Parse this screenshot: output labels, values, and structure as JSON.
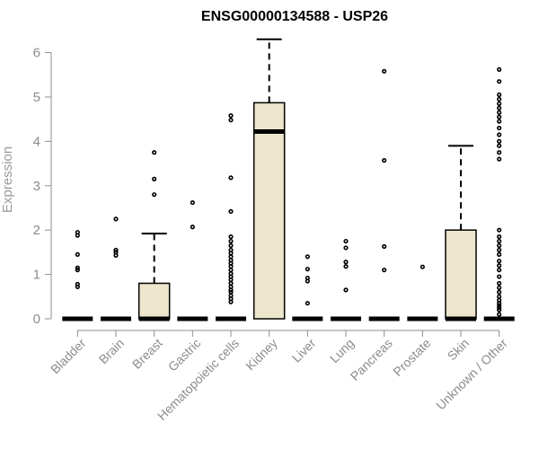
{
  "chart_data": {
    "type": "box",
    "title": "ENSG00000134588 - USP26",
    "xlabel": "",
    "ylabel": "Expression",
    "ylim": [
      0,
      6.3
    ],
    "y_ticks": [
      0,
      1,
      2,
      3,
      4,
      5,
      6
    ],
    "grid": false,
    "colors": {
      "box_fill": "#ede6cc",
      "line": "#000000",
      "axis": "#8c8c8c",
      "label": "#8c8c8c"
    },
    "categories": [
      "Bladder",
      "Brain",
      "Breast",
      "Gastric",
      "Hematopoietic cells",
      "Kidney",
      "Liver",
      "Lung",
      "Pancreas",
      "Prostate",
      "Skin",
      "Unknown / Other"
    ],
    "boxes": [
      {
        "category": "Bladder",
        "q1": 0,
        "median": 0,
        "q3": 0,
        "whisker_low": 0,
        "whisker_high": 0,
        "outliers": [
          0.72,
          0.78,
          1.1,
          1.15,
          1.45,
          1.88,
          1.95
        ]
      },
      {
        "category": "Brain",
        "q1": 0,
        "median": 0,
        "q3": 0,
        "whisker_low": 0,
        "whisker_high": 0,
        "outliers": [
          1.43,
          1.5,
          1.55,
          2.25
        ]
      },
      {
        "category": "Breast",
        "q1": 0,
        "median": 0,
        "q3": 0.8,
        "whisker_low": 0,
        "whisker_high": 1.92,
        "outliers": [
          2.8,
          3.15,
          3.75
        ]
      },
      {
        "category": "Gastric",
        "q1": 0,
        "median": 0,
        "q3": 0,
        "whisker_low": 0,
        "whisker_high": 0,
        "outliers": [
          2.07,
          2.62
        ]
      },
      {
        "category": "Hematopoietic cells",
        "q1": 0,
        "median": 0,
        "q3": 0,
        "whisker_low": 0,
        "whisker_high": 0,
        "outliers": [
          0.38,
          0.45,
          0.52,
          0.6,
          0.65,
          0.72,
          0.8,
          0.88,
          0.95,
          1.02,
          1.1,
          1.18,
          1.25,
          1.32,
          1.4,
          1.48,
          1.55,
          1.65,
          1.75,
          1.85,
          2.42,
          3.18,
          4.48,
          4.58
        ]
      },
      {
        "category": "Kidney",
        "q1": 0,
        "median": 4.22,
        "q3": 4.87,
        "whisker_low": 0,
        "whisker_high": 6.3,
        "outliers": []
      },
      {
        "category": "Liver",
        "q1": 0,
        "median": 0,
        "q3": 0,
        "whisker_low": 0,
        "whisker_high": 0,
        "outliers": [
          0.35,
          0.85,
          0.92,
          1.12,
          1.4
        ]
      },
      {
        "category": "Lung",
        "q1": 0,
        "median": 0,
        "q3": 0,
        "whisker_low": 0,
        "whisker_high": 0,
        "outliers": [
          0.65,
          1.18,
          1.28,
          1.6,
          1.75
        ]
      },
      {
        "category": "Pancreas",
        "q1": 0,
        "median": 0,
        "q3": 0,
        "whisker_low": 0,
        "whisker_high": 0,
        "outliers": [
          1.1,
          1.63,
          3.57,
          5.58
        ]
      },
      {
        "category": "Prostate",
        "q1": 0,
        "median": 0,
        "q3": 0,
        "whisker_low": 0,
        "whisker_high": 0,
        "outliers": [
          1.17
        ]
      },
      {
        "category": "Skin",
        "q1": 0,
        "median": 0,
        "q3": 2.0,
        "whisker_low": 0,
        "whisker_high": 3.9,
        "outliers": []
      },
      {
        "category": "Unknown / Other",
        "q1": 0,
        "median": 0,
        "q3": 0,
        "whisker_low": 0,
        "whisker_high": 0,
        "outliers": [
          0.1,
          0.2,
          0.25,
          0.3,
          0.35,
          0.42,
          0.5,
          0.6,
          0.7,
          0.8,
          0.95,
          1.1,
          1.2,
          1.3,
          1.45,
          1.55,
          1.65,
          1.75,
          1.85,
          2.0,
          3.6,
          3.75,
          3.9,
          4.0,
          4.15,
          4.3,
          4.45,
          4.55,
          4.65,
          4.75,
          4.85,
          4.95,
          5.05,
          5.35,
          5.62
        ]
      }
    ]
  }
}
